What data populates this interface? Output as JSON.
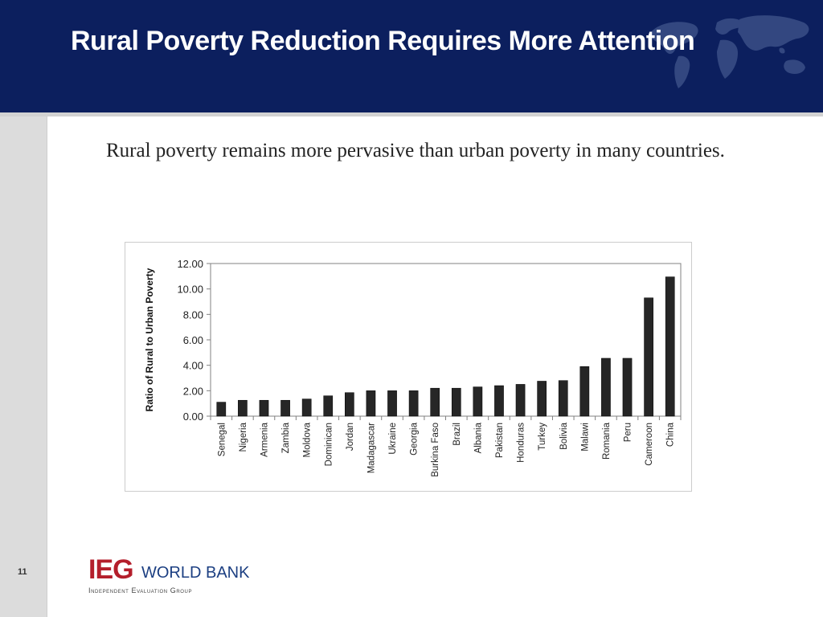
{
  "slide": {
    "title": "Rural Poverty Reduction Requires More Attention",
    "bullet": "Rural poverty remains more pervasive than urban poverty in many countries.",
    "page_number": "11"
  },
  "logo": {
    "mark": "IEG",
    "name": "WORLD BANK",
    "subtitle": "Independent Evaluation Group"
  },
  "colors": {
    "header": "#0c1f5e",
    "bar": "#262626",
    "logo_red": "#b41e2b",
    "logo_blue": "#1c3f82"
  },
  "chart_data": {
    "type": "bar",
    "ylabel": "Ratio of Rural to Urban Poverty",
    "xlabel": "",
    "ylim": [
      0,
      12
    ],
    "yticks": [
      "0.00",
      "2.00",
      "4.00",
      "6.00",
      "8.00",
      "10.00",
      "12.00"
    ],
    "grid": false,
    "categories": [
      "Senegal",
      "Nigeria",
      "Armenia",
      "Zambia",
      "Moldova",
      "Dominican",
      "Jordan",
      "Madagascar",
      "Ukraine",
      "Georgia",
      "Burkina Faso",
      "Brazil",
      "Albania",
      "Pakistan",
      "Honduras",
      "Turkey",
      "Bolivia",
      "Malawi",
      "Romania",
      "Peru",
      "Cameroon",
      "China"
    ],
    "values": [
      1.1,
      1.25,
      1.25,
      1.25,
      1.35,
      1.6,
      1.85,
      2.0,
      2.0,
      2.0,
      2.2,
      2.2,
      2.3,
      2.4,
      2.5,
      2.75,
      2.8,
      3.9,
      4.55,
      4.55,
      9.3,
      10.95
    ]
  }
}
